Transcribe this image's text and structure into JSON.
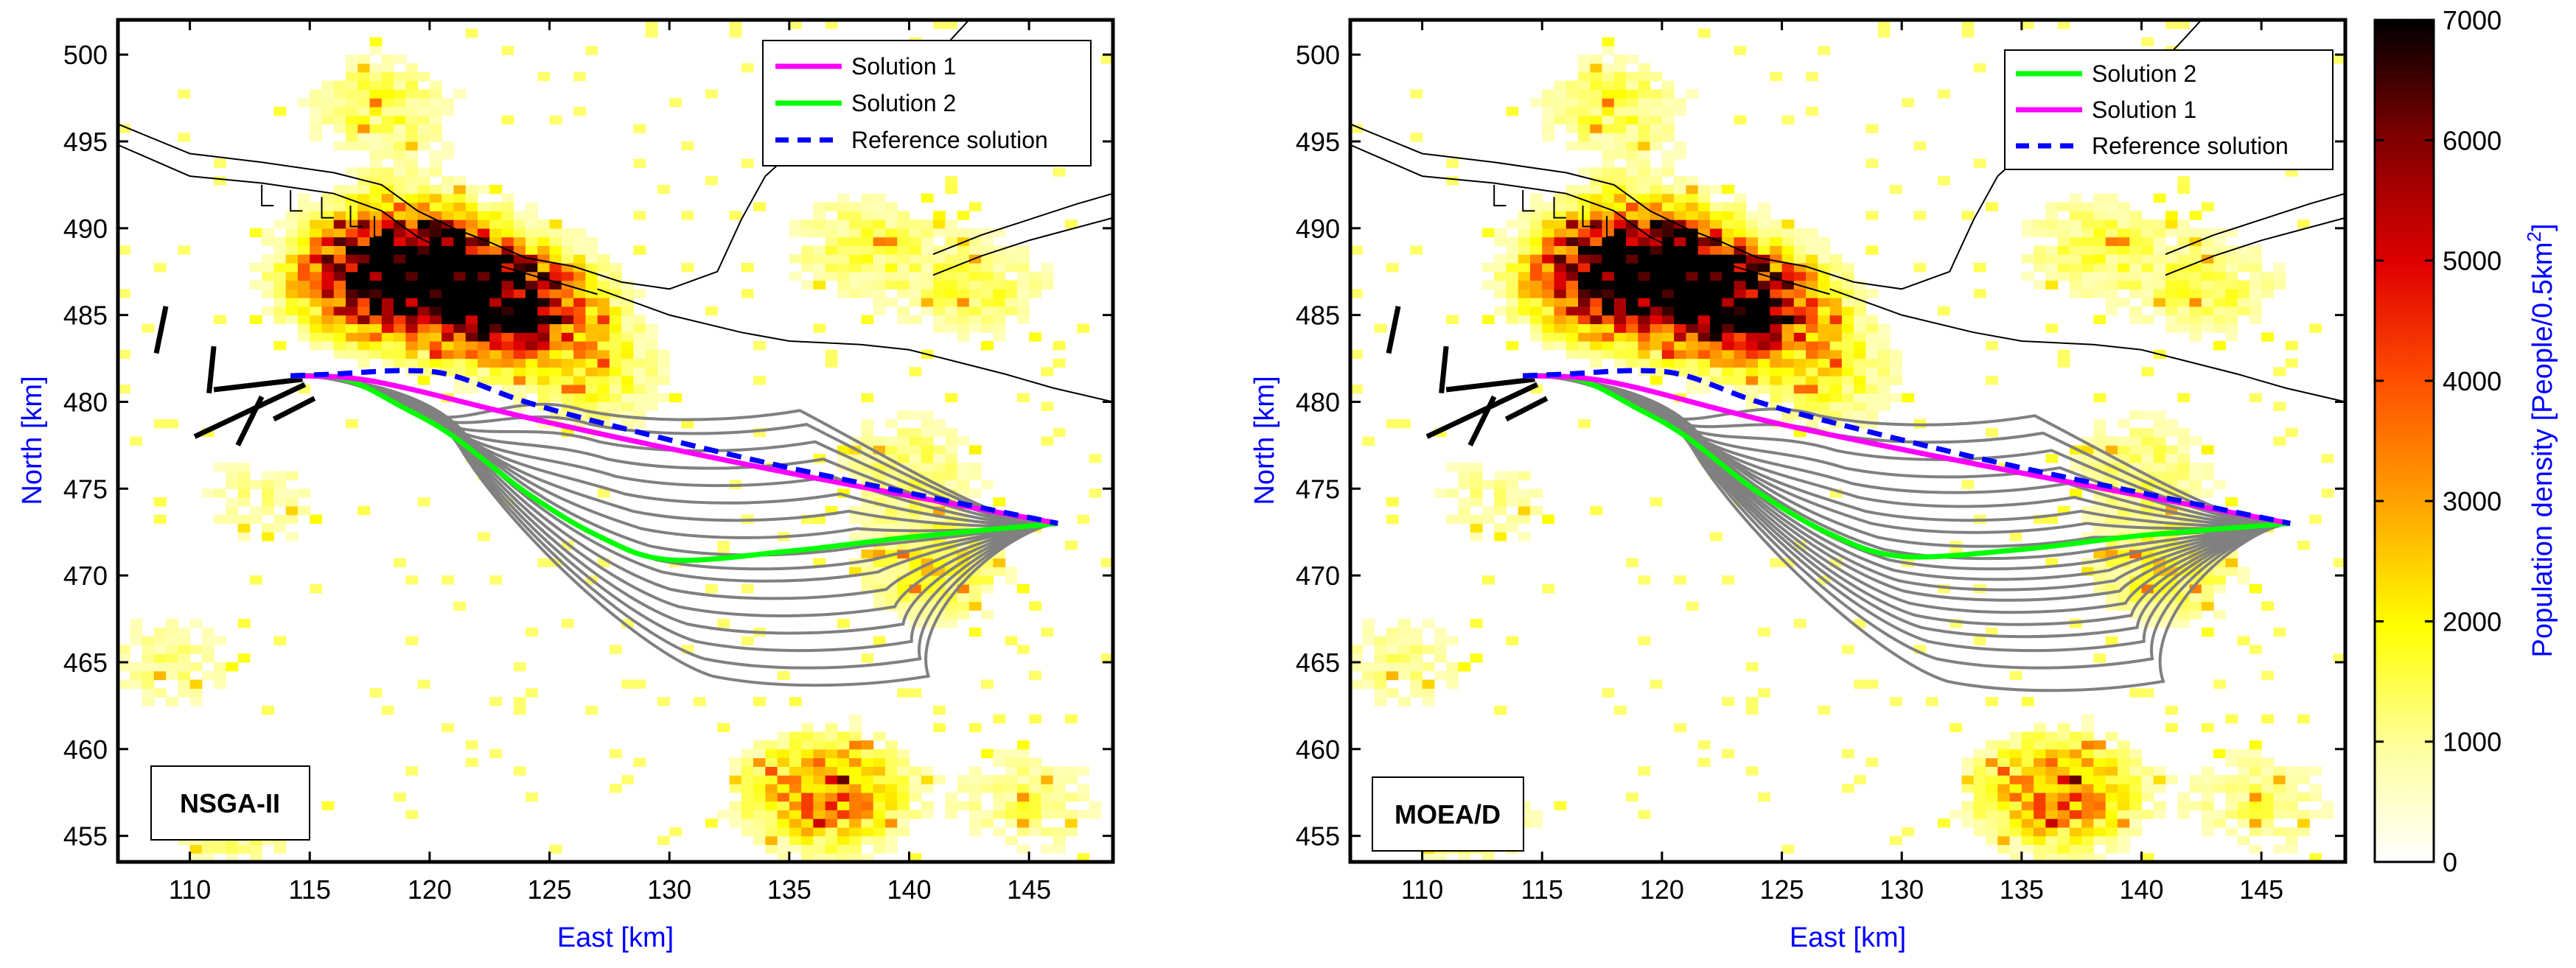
{
  "colors": {
    "axis_label": "#0000ff",
    "solution1": "#ff00ff",
    "solution2": "#00ff00",
    "reference": "#0000ff",
    "front": "#808080",
    "coast": "#000000"
  },
  "chart_data": [
    {
      "type": "line",
      "overlay": "heatmap",
      "label": "NSGA-II",
      "xlabel": "East [km]",
      "ylabel": "North [km]",
      "xlim": [
        107,
        148.5
      ],
      "ylim": [
        453.5,
        502
      ],
      "xticks": [
        110,
        115,
        120,
        125,
        130,
        135,
        140,
        145
      ],
      "yticks": [
        455,
        460,
        465,
        470,
        475,
        480,
        485,
        490,
        495,
        500
      ],
      "legend": [
        "Solution 1",
        "Solution 2",
        "Reference solution"
      ],
      "legend_position": "top-right",
      "start": [
        114.2,
        481.5
      ],
      "end": [
        146.2,
        473.0
      ],
      "series": [
        {
          "name": "Solution 1",
          "points": [
            [
              114.2,
              481.5
            ],
            [
              116.5,
              481.4
            ],
            [
              119,
              480.8
            ],
            [
              125,
              478.8
            ],
            [
              135,
              475.9
            ],
            [
              146.2,
              473.0
            ]
          ]
        },
        {
          "name": "Solution 2",
          "points": [
            [
              114.2,
              481.5
            ],
            [
              116.5,
              481.3
            ],
            [
              119,
              479.6
            ],
            [
              121,
              478.0
            ],
            [
              124,
              474.8
            ],
            [
              127,
              472.3
            ],
            [
              130,
              470.9
            ],
            [
              135,
              471.4
            ],
            [
              140,
              472.2
            ],
            [
              146.2,
              473.0
            ]
          ]
        },
        {
          "name": "Reference solution",
          "points": [
            [
              114.2,
              481.5
            ],
            [
              116,
              481.6
            ],
            [
              119,
              481.8
            ],
            [
              121,
              481.5
            ],
            [
              124,
              480.0
            ],
            [
              128,
              478.5
            ],
            [
              135,
              476.2
            ],
            [
              146.2,
              473.0
            ]
          ]
        }
      ],
      "front_bottoms": [
        463.5,
        464.5,
        465.5,
        466.5,
        467.5,
        468.5,
        469.5,
        470.2,
        471,
        472,
        473,
        474,
        475,
        476,
        477,
        478,
        478.8
      ],
      "population_hotspots": [
        {
          "x": 121,
          "y": 486.5,
          "peak": 6500
        },
        {
          "x": 119,
          "y": 488.5,
          "peak": 5200
        },
        {
          "x": 124,
          "y": 485.5,
          "peak": 4800
        },
        {
          "x": 117,
          "y": 487,
          "peak": 3800
        },
        {
          "x": 136.5,
          "y": 457.5,
          "peak": 3800
        },
        {
          "x": 141,
          "y": 470.5,
          "peak": 2000
        },
        {
          "x": 118,
          "y": 497,
          "peak": 1600
        },
        {
          "x": 138,
          "y": 489,
          "peak": 1500
        },
        {
          "x": 143,
          "y": 486.5,
          "peak": 1400
        },
        {
          "x": 145,
          "y": 457,
          "peak": 1300
        },
        {
          "x": 112,
          "y": 455.5,
          "peak": 1200
        },
        {
          "x": 109,
          "y": 465,
          "peak": 1100
        },
        {
          "x": 127,
          "y": 481.5,
          "peak": 1600
        },
        {
          "x": 140,
          "y": 476.5,
          "peak": 1300
        },
        {
          "x": 113,
          "y": 474.5,
          "peak": 1000
        }
      ]
    },
    {
      "type": "line",
      "overlay": "heatmap",
      "label": "MOEA/D",
      "xlabel": "East [km]",
      "ylabel": "North [km]",
      "xlim": [
        107,
        148.5
      ],
      "ylim": [
        453.5,
        502
      ],
      "xticks": [
        110,
        115,
        120,
        125,
        130,
        135,
        140,
        145
      ],
      "yticks": [
        455,
        460,
        465,
        470,
        475,
        480,
        485,
        490,
        495,
        500
      ],
      "legend": [
        "Solution 2",
        "Solution 1",
        "Reference solution"
      ],
      "legend_position": "top-right",
      "start": [
        114.2,
        481.5
      ],
      "end": [
        146.2,
        473.0
      ],
      "series": [
        {
          "name": "Solution 2",
          "points": [
            [
              114.2,
              481.5
            ],
            [
              116.5,
              481.3
            ],
            [
              119,
              479.6
            ],
            [
              121,
              478.0
            ],
            [
              124,
              474.8
            ],
            [
              127,
              472.4
            ],
            [
              130,
              471.1
            ],
            [
              135,
              471.5
            ],
            [
              140,
              472.3
            ],
            [
              146.2,
              473.0
            ]
          ]
        },
        {
          "name": "Solution 1",
          "points": [
            [
              114.2,
              481.5
            ],
            [
              116.5,
              481.4
            ],
            [
              119,
              480.8
            ],
            [
              125,
              478.7
            ],
            [
              135,
              475.9
            ],
            [
              146.2,
              473.0
            ]
          ]
        },
        {
          "name": "Reference solution",
          "points": [
            [
              114.2,
              481.5
            ],
            [
              116,
              481.6
            ],
            [
              119,
              481.8
            ],
            [
              121,
              481.5
            ],
            [
              124,
              480.0
            ],
            [
              128,
              478.5
            ],
            [
              135,
              476.2
            ],
            [
              146.2,
              473.0
            ]
          ]
        }
      ],
      "front_bottoms": [
        463.2,
        464.5,
        465.5,
        466.3,
        467,
        467.7,
        468.4,
        469,
        469.6,
        470.2,
        470.8,
        471.5,
        472.3,
        473,
        473.8,
        474.6,
        475.5,
        476.5,
        477.5,
        478.5
      ],
      "population_hotspots": [
        {
          "x": 121,
          "y": 486.5,
          "peak": 6500
        },
        {
          "x": 119,
          "y": 488.5,
          "peak": 5200
        },
        {
          "x": 124,
          "y": 485.5,
          "peak": 4800
        },
        {
          "x": 117,
          "y": 487,
          "peak": 3800
        },
        {
          "x": 136.5,
          "y": 457.5,
          "peak": 3800
        },
        {
          "x": 141,
          "y": 470.5,
          "peak": 2000
        },
        {
          "x": 118,
          "y": 497,
          "peak": 1600
        },
        {
          "x": 138,
          "y": 489,
          "peak": 1500
        },
        {
          "x": 143,
          "y": 486.5,
          "peak": 1400
        },
        {
          "x": 145,
          "y": 457,
          "peak": 1300
        },
        {
          "x": 112,
          "y": 455.5,
          "peak": 1200
        },
        {
          "x": 109,
          "y": 465,
          "peak": 1100
        },
        {
          "x": 127,
          "y": 481.5,
          "peak": 1600
        },
        {
          "x": 140,
          "y": 476.5,
          "peak": 1300
        },
        {
          "x": 113,
          "y": 474.5,
          "peak": 1000
        }
      ]
    }
  ],
  "colorbar": {
    "label": "Population density [People/0.5km",
    "label_sup": "2",
    "label_end": "]",
    "ticks": [
      0,
      1000,
      2000,
      3000,
      4000,
      5000,
      6000,
      7000
    ],
    "range": [
      0,
      7000
    ]
  }
}
